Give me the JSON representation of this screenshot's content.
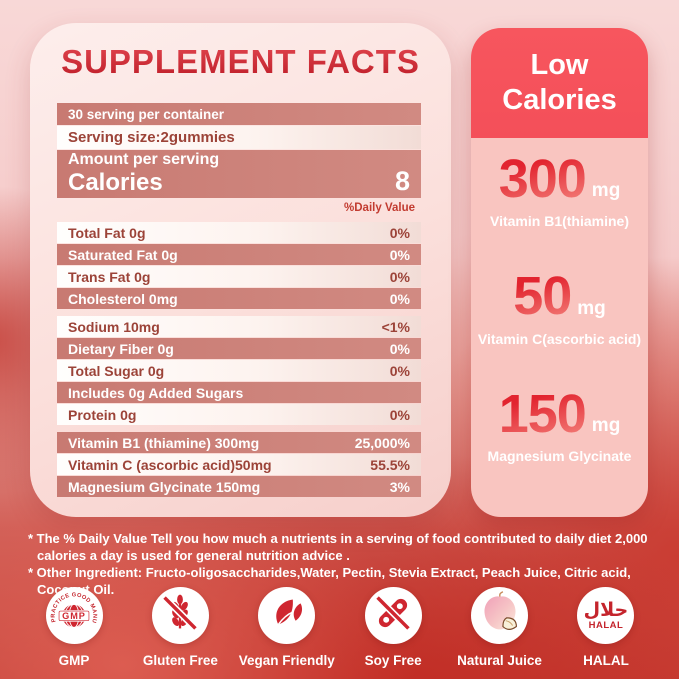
{
  "panel": {
    "title": "SUPPLEMENT FACTS",
    "serving_per_container": "30 serving per container",
    "serving_size": "Serving size:2gummies",
    "amount_per_serving": "Amount per serving",
    "calories_label": "Calories",
    "calories_value": "8",
    "daily_value_header": "%Daily Value",
    "rows": [
      {
        "label": "Total Fat 0g",
        "value": "0%",
        "variant": "light",
        "gap_before": false
      },
      {
        "label": "Saturated Fat 0g",
        "value": "0%",
        "variant": "dark",
        "gap_before": false
      },
      {
        "label": "Trans Fat 0g",
        "value": "0%",
        "variant": "light",
        "gap_before": false
      },
      {
        "label": "Cholesterol 0mg",
        "value": "0%",
        "variant": "dark",
        "gap_before": false
      },
      {
        "label": "Sodium 10mg",
        "value": "<1%",
        "variant": "light",
        "gap_before": true
      },
      {
        "label": "Dietary Fiber 0g",
        "value": "0%",
        "variant": "dark",
        "gap_before": false
      },
      {
        "label": "Total Sugar 0g",
        "value": "0%",
        "variant": "light",
        "gap_before": false
      },
      {
        "label": "Includes 0g Added Sugars",
        "value": "",
        "variant": "dark",
        "gap_before": false
      },
      {
        "label": "Protein 0g",
        "value": "0%",
        "variant": "light",
        "gap_before": false
      },
      {
        "label": "Vitamin B1 (thiamine) 300mg",
        "value": "25,000%",
        "variant": "dark",
        "gap_before": true
      },
      {
        "label": "Vitamin C (ascorbic acid)50mg",
        "value": "55.5%",
        "variant": "light",
        "gap_before": false
      },
      {
        "label": "Magnesium Glycinate 150mg",
        "value": "3%",
        "variant": "dark",
        "gap_before": false
      }
    ]
  },
  "highlight_card": {
    "header": "Low Calories",
    "items": [
      {
        "amount": "300",
        "unit": "mg",
        "label": "Vitamin B1(thiamine)"
      },
      {
        "amount": "50",
        "unit": "mg",
        "label": "Vitamin C(ascorbic acid)"
      },
      {
        "amount": "150",
        "unit": "mg",
        "label": "Magnesium Glycinate"
      }
    ]
  },
  "footnotes": [
    "* The % Daily Value Tell you how much a nutrients in a serving of food contributed to daily diet 2,000 calories a day is used for general nutrition advice .",
    "* Other Ingredient: Fructo-oligosaccharides,Water, Pectin, Stevia Extract, Peach Juice, Citric acid, Coconut Oil."
  ],
  "badges": [
    {
      "icon": "gmp-seal-icon",
      "label": "GMP",
      "seal_text": "PRACTICE GOOD MANUFACTURING",
      "seal_center": "GMP"
    },
    {
      "icon": "gluten-free-icon",
      "label": "Gluten Free"
    },
    {
      "icon": "vegan-leaf-icon",
      "label": "Vegan Friendly"
    },
    {
      "icon": "soy-free-icon",
      "label": "Soy Free"
    },
    {
      "icon": "peach-juice-icon",
      "label": "Natural Juice"
    },
    {
      "icon": "halal-icon",
      "label": "HALAL",
      "arabic": "حلال",
      "word": "HALAL"
    }
  ],
  "colors": {
    "title_red": "#d92b33",
    "row_pink": "#ca7d75",
    "row_text_red": "#9c4338",
    "card_red": "#f7565e",
    "card_pink": "#f9c5c0",
    "badge_red": "#c4242c"
  }
}
